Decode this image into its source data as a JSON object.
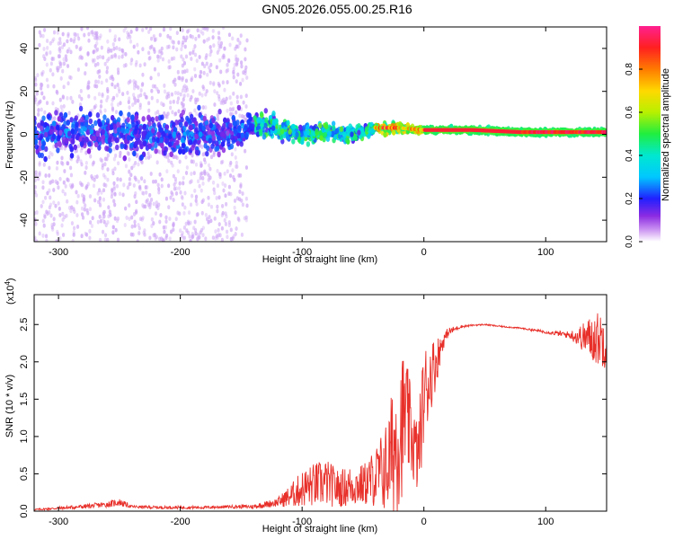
{
  "title": "GN05.2026.055.00.25.R16",
  "chart_data": [
    {
      "type": "heatmap",
      "name": "spectrogram",
      "xlabel": "Height of straight line (km)",
      "ylabel": "Frequency (Hz)",
      "xlim": [
        -320,
        150
      ],
      "ylim": [
        -50,
        50
      ],
      "xticks": [
        -300,
        -200,
        -100,
        0,
        100
      ],
      "yticks": [
        -40,
        -20,
        0,
        20,
        40
      ],
      "ridge": {
        "x": [
          -320,
          -280,
          -240,
          -200,
          -160,
          -140,
          -120,
          -100,
          -80,
          -60,
          -40,
          -20,
          0,
          40,
          80,
          120,
          150
        ],
        "freq": [
          0,
          1,
          0,
          0,
          0,
          5,
          3,
          0,
          1,
          0,
          3,
          3,
          2,
          2,
          1,
          1,
          1
        ],
        "spread": [
          15,
          15,
          14,
          15,
          14,
          9,
          8,
          6,
          6,
          6,
          4,
          3,
          2,
          2,
          2,
          2,
          2
        ]
      },
      "colorbar": {
        "label": "Normalized spectral amplitude",
        "range": [
          0,
          1
        ],
        "ticks": [
          "0.0",
          "0.2",
          "0.4",
          "0.6",
          "0.8"
        ]
      }
    },
    {
      "type": "line",
      "name": "snr",
      "xlabel": "Height of straight line (km)",
      "ylabel": "SNR (10 * v/v)",
      "yscale_label": "(x10",
      "yscale_exp": "4",
      "scale_suffix": ")",
      "xlim": [
        -320,
        150
      ],
      "ylim": [
        0,
        2.9
      ],
      "xticks": [
        -300,
        -200,
        -100,
        0,
        100
      ],
      "yticks": [
        "0.0",
        "0.5",
        "1.0",
        "1.5",
        "2.0",
        "2.5"
      ],
      "color": "#e8302a",
      "series": [
        {
          "name": "SNR",
          "x": [
            -320,
            -300,
            -280,
            -260,
            -250,
            -240,
            -220,
            -200,
            -180,
            -160,
            -140,
            -120,
            -110,
            -100,
            -90,
            -80,
            -70,
            -60,
            -50,
            -40,
            -30,
            -25,
            -20,
            -15,
            -10,
            -5,
            0,
            5,
            10,
            15,
            20,
            30,
            40,
            50,
            60,
            80,
            100,
            120,
            130,
            140,
            150
          ],
          "mean": [
            0.02,
            0.04,
            0.06,
            0.09,
            0.12,
            0.06,
            0.05,
            0.05,
            0.05,
            0.06,
            0.06,
            0.12,
            0.2,
            0.3,
            0.35,
            0.38,
            0.3,
            0.34,
            0.35,
            0.45,
            0.6,
            0.85,
            1.1,
            1.3,
            1.0,
            0.7,
            1.55,
            1.8,
            2.0,
            2.25,
            2.4,
            2.47,
            2.49,
            2.5,
            2.48,
            2.45,
            2.4,
            2.36,
            2.33,
            2.32,
            2.3
          ],
          "noise": [
            0.01,
            0.02,
            0.03,
            0.04,
            0.05,
            0.02,
            0.02,
            0.02,
            0.02,
            0.02,
            0.03,
            0.06,
            0.15,
            0.25,
            0.3,
            0.32,
            0.25,
            0.28,
            0.28,
            0.4,
            0.65,
            0.9,
            1.1,
            0.8,
            0.6,
            0.5,
            0.7,
            0.5,
            0.35,
            0.12,
            0.06,
            0.02,
            0.01,
            0.01,
            0.01,
            0.01,
            0.02,
            0.05,
            0.18,
            0.35,
            0.4
          ]
        }
      ]
    }
  ]
}
